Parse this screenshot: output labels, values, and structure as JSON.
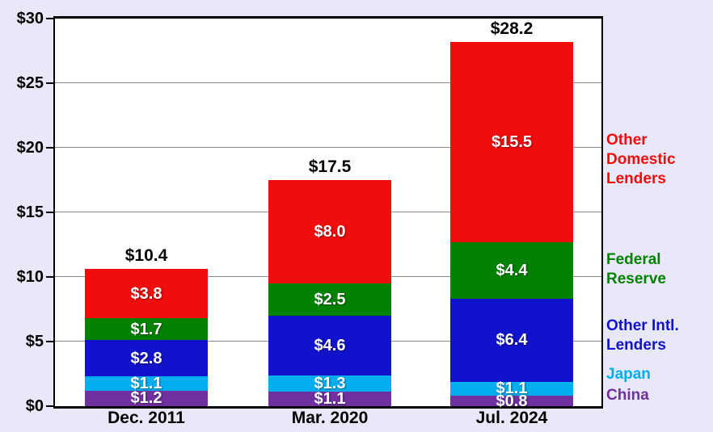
{
  "chart_data": {
    "type": "bar",
    "stacked": true,
    "title": "",
    "categories": [
      "Dec. 2011",
      "Mar. 2020",
      "Jul. 2024"
    ],
    "series": [
      {
        "name": "China",
        "color": "#7030A0",
        "values": [
          1.2,
          1.1,
          0.8
        ],
        "value_labels": [
          "$1.2",
          "$1.1",
          "$0.8"
        ]
      },
      {
        "name": "Japan",
        "color": "#00AEEF",
        "values": [
          1.1,
          1.3,
          1.1
        ],
        "value_labels": [
          "$1.1",
          "$1.3",
          "$1.1"
        ]
      },
      {
        "name": "Other Intl. Lenders",
        "color": "#1212CC",
        "values": [
          2.8,
          4.6,
          6.4
        ],
        "value_labels": [
          "$2.8",
          "$4.6",
          "$6.4"
        ]
      },
      {
        "name": "Federal Reserve",
        "color": "#028102",
        "values": [
          1.7,
          2.5,
          4.4
        ],
        "value_labels": [
          "$1.7",
          "$2.5",
          "$4.4"
        ]
      },
      {
        "name": "Other Domestic Lenders",
        "color": "#F00D0D",
        "values": [
          3.8,
          8.0,
          15.5
        ],
        "value_labels": [
          "$3.8",
          "$8.0",
          "$15.5"
        ]
      }
    ],
    "totals": [
      10.4,
      17.5,
      28.2
    ],
    "total_labels": [
      "$10.4",
      "$17.5",
      "$28.2"
    ],
    "ylim": [
      0,
      30
    ],
    "ytick_step": 5,
    "ytick_labels": [
      "$0",
      "$5",
      "$10",
      "$15",
      "$20",
      "$25",
      "$30"
    ],
    "grid": true,
    "legend_position": "right",
    "legend": [
      {
        "series": "Other Domestic Lenders",
        "lines": [
          "Other",
          "Domestic",
          "Lenders"
        ],
        "color": "#F00D0D"
      },
      {
        "series": "Federal Reserve",
        "lines": [
          "Federal",
          "Reserve"
        ],
        "color": "#028102"
      },
      {
        "series": "Other Intl. Lenders",
        "lines": [
          "Other Intl.",
          "Lenders"
        ],
        "color": "#1212CC"
      },
      {
        "series": "Japan",
        "lines": [
          "Japan"
        ],
        "color": "#00AEEF"
      },
      {
        "series": "China",
        "lines": [
          "China"
        ],
        "color": "#7030A0"
      }
    ],
    "colors": {
      "background": "#E8E8F8",
      "plot_background": "#FFFFFF",
      "gridline": "#888888",
      "axis": "#000000",
      "bar_value_text": "#FFFFFF",
      "axis_text": "#000000"
    }
  }
}
